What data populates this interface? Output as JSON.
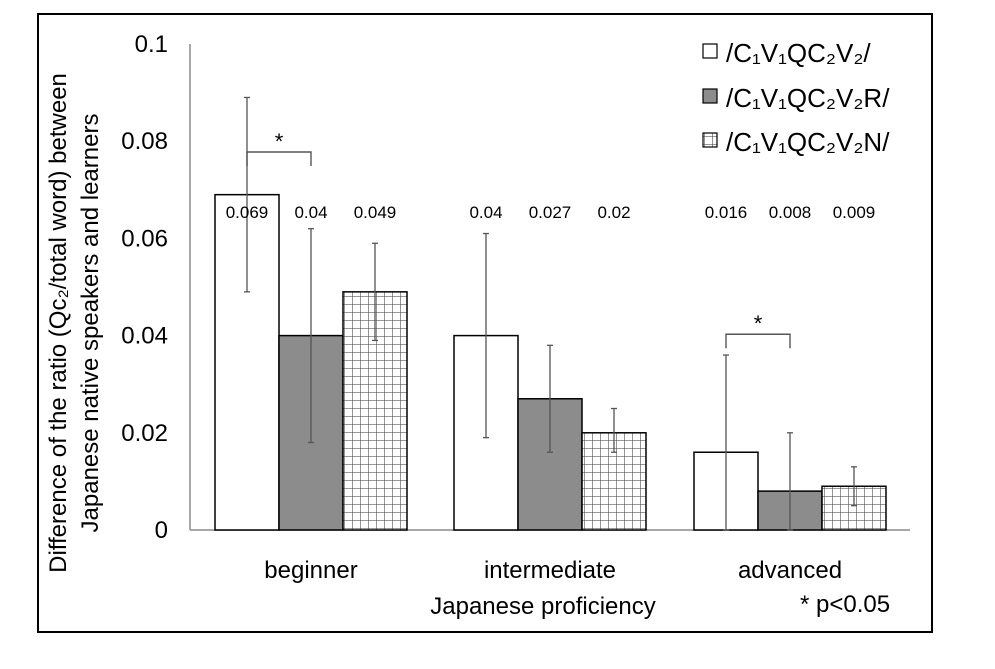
{
  "chart_data": {
    "type": "bar",
    "title": "",
    "xlabel": "Japanese proficiency",
    "ylabel_lines": [
      "Difference of the ratio (Qc₂/total word) between",
      "Japanese native speakers and learners"
    ],
    "ylim": [
      0,
      0.1
    ],
    "yticks": [
      "0",
      "0.02",
      "0.04",
      "0.06",
      "0.08",
      "0.1"
    ],
    "categories": [
      "beginner",
      "intermediate",
      "advanced"
    ],
    "series": [
      {
        "name": "/C₁V₁QC₂V₂/",
        "pattern": "white",
        "values": [
          0.069,
          0.04,
          0.016
        ],
        "value_labels": [
          "0.069",
          "0.04",
          "0.016"
        ],
        "err_low": [
          0.049,
          0.019,
          0.0
        ],
        "err_high": [
          0.089,
          0.061,
          0.036
        ]
      },
      {
        "name": "/C₁V₁QC₂V₂R/",
        "pattern": "gray",
        "values": [
          0.04,
          0.027,
          0.008
        ],
        "value_labels": [
          "0.04",
          "0.027",
          "0.008"
        ],
        "err_low": [
          0.018,
          0.016,
          0.0
        ],
        "err_high": [
          0.062,
          0.038,
          0.02
        ]
      },
      {
        "name": "/C₁V₁QC₂V₂N/",
        "pattern": "grid",
        "values": [
          0.049,
          0.02,
          0.009
        ],
        "value_labels": [
          "0.049",
          "0.02",
          "0.009"
        ],
        "err_low": [
          0.039,
          0.016,
          0.005
        ],
        "err_high": [
          0.059,
          0.025,
          0.013
        ]
      }
    ],
    "significance": [
      {
        "category": 0,
        "from_series": 0,
        "to_series": 1,
        "label": "*"
      },
      {
        "category": 2,
        "from_series": 0,
        "to_series": 1,
        "label": "*"
      }
    ],
    "note": "*  p<0.05",
    "grid": false,
    "legend": "top-right",
    "colors": {
      "white": "#ffffff",
      "gray": "#8c8c8c",
      "grid_line": "#5a5a5a",
      "stroke": "#000000"
    }
  }
}
